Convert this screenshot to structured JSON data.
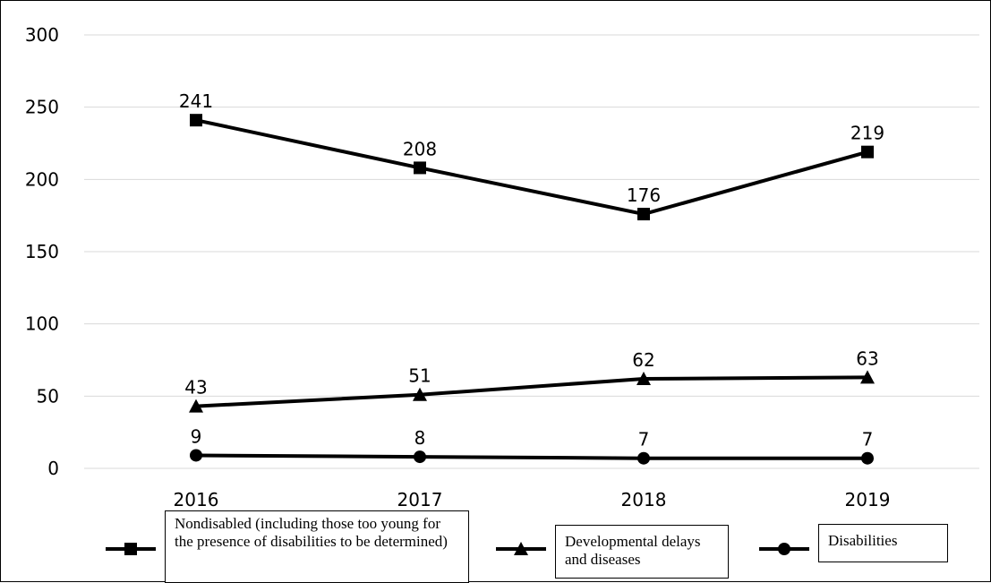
{
  "chart_data": {
    "type": "line",
    "categories": [
      "2016",
      "2017",
      "2018",
      "2019"
    ],
    "series": [
      {
        "name": "Nondisabled (including those too young for the presence of disabilities to be determined)",
        "marker": "square",
        "values": [
          241,
          208,
          176,
          219
        ]
      },
      {
        "name": "Developmental delays and diseases",
        "marker": "triangle",
        "values": [
          43,
          51,
          62,
          63
        ]
      },
      {
        "name": "Disabilities",
        "marker": "circle",
        "values": [
          9,
          8,
          7,
          7
        ]
      }
    ],
    "ylim": [
      0,
      300
    ],
    "yticks": [
      "0",
      "50",
      "100",
      "150",
      "200",
      "250",
      "300"
    ],
    "grid": true,
    "legend": "bottom",
    "colors": {
      "line": "#000000",
      "grid": "#d9d9d9"
    }
  }
}
